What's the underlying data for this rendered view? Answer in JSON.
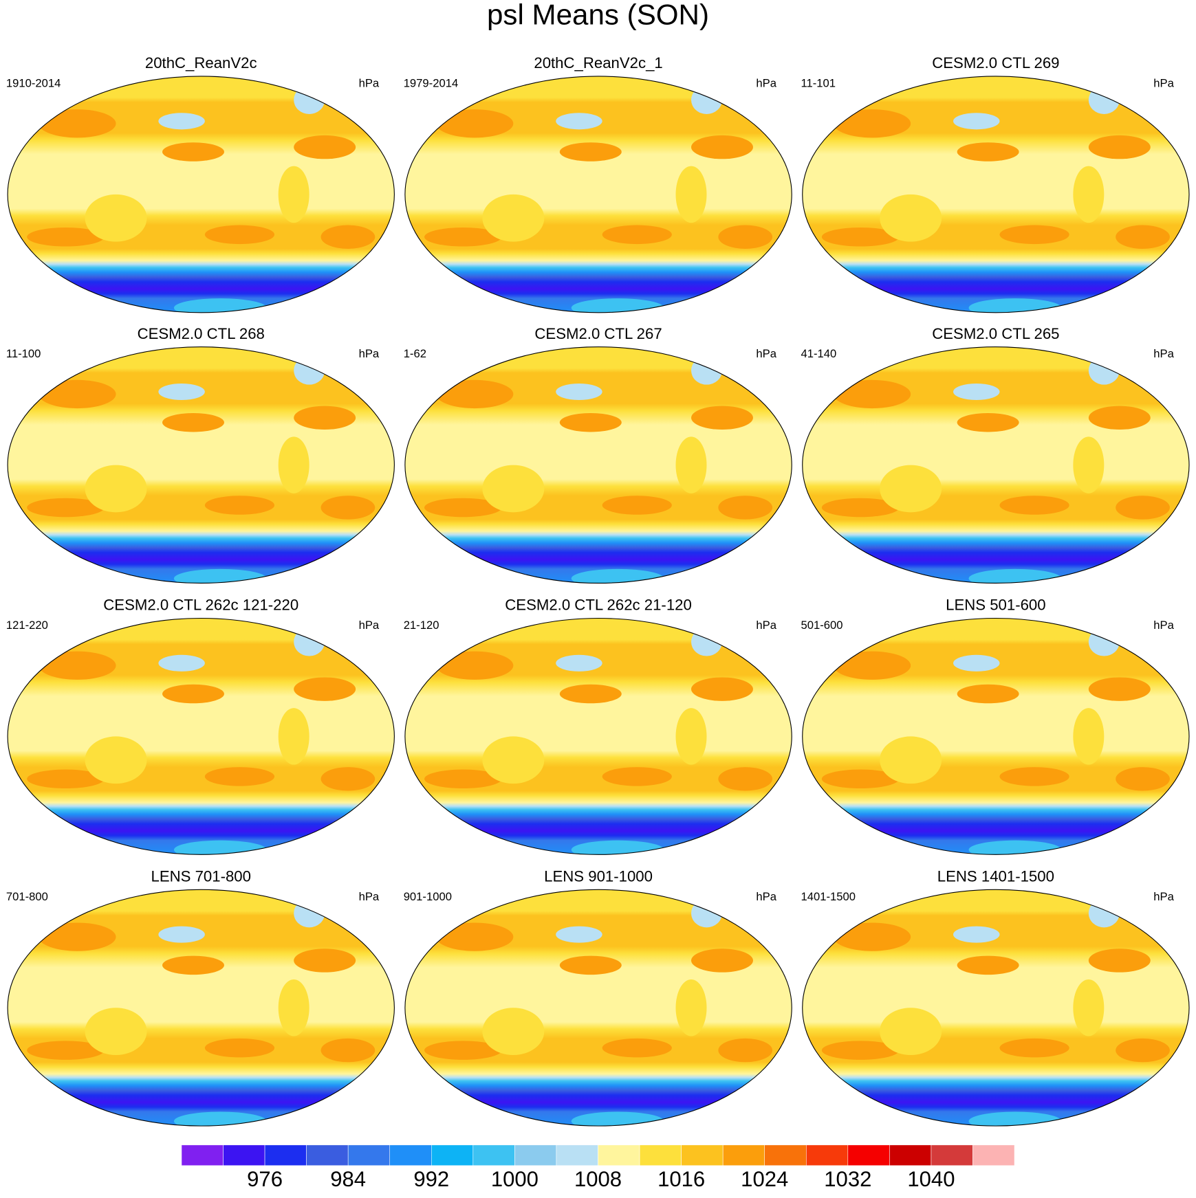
{
  "title": "psl Means (SON)",
  "panels": [
    {
      "title": "20thC_ReanV2c",
      "period": "1910-2014",
      "units": "hPa"
    },
    {
      "title": "20thC_ReanV2c_1",
      "period": "1979-2014",
      "units": "hPa"
    },
    {
      "title": "CESM2.0 CTL 269",
      "period": "11-101",
      "units": "hPa"
    },
    {
      "title": "CESM2.0 CTL 268",
      "period": "11-100",
      "units": "hPa"
    },
    {
      "title": "CESM2.0 CTL 267",
      "period": "1-62",
      "units": "hPa"
    },
    {
      "title": "CESM2.0 CTL 265",
      "period": "41-140",
      "units": "hPa"
    },
    {
      "title": "CESM2.0 CTL 262c 121-220",
      "period": "121-220",
      "units": "hPa"
    },
    {
      "title": "CESM2.0 CTL 262c 21-120",
      "period": "21-120",
      "units": "hPa"
    },
    {
      "title": "LENS 501-600",
      "period": "501-600",
      "units": "hPa"
    },
    {
      "title": "LENS 701-800",
      "period": "701-800",
      "units": "hPa"
    },
    {
      "title": "LENS 901-1000",
      "period": "901-1000",
      "units": "hPa"
    },
    {
      "title": "LENS 1401-1500",
      "period": "1401-1500",
      "units": "hPa"
    }
  ],
  "colorbar": {
    "lim": [
      968,
      1048
    ],
    "ticks": [
      976,
      984,
      992,
      1000,
      1008,
      1016,
      1024,
      1032,
      1040
    ],
    "colors": [
      "#8020f0",
      "#3c14f2",
      "#1c2ef0",
      "#3a5de0",
      "#3478ec",
      "#1f8ff8",
      "#0db3f5",
      "#3dc2f2",
      "#8bcbee",
      "#b9e0f4",
      "#fff59d",
      "#fde03c",
      "#fcc21f",
      "#fb9e0c",
      "#f8720a",
      "#f73a0a",
      "#f50000",
      "#cc0000",
      "#d43a3a",
      "#fcb3b3"
    ]
  }
}
